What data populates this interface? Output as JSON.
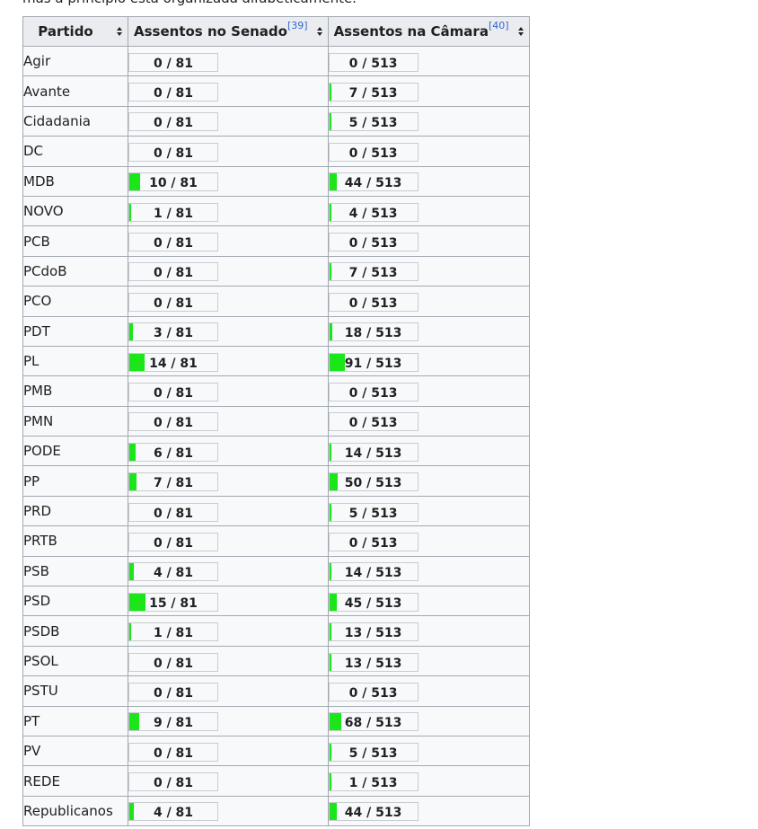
{
  "intro_text": "mas a princípio está organizada alfabeticamente.",
  "colors": {
    "bar_fill": "#1ae61a",
    "header_bg": "#eaecf0",
    "cell_bg": "#f8f9fa",
    "link": "#3366cc"
  },
  "headers": {
    "party": "Partido",
    "senate": "Assentos no Senado",
    "senate_ref": "[39]",
    "chamber": "Assentos na Câmara",
    "chamber_ref": "[40]"
  },
  "senate_total": 81,
  "chamber_total": 513,
  "rows": [
    {
      "party": "Agir",
      "senate": 0,
      "senate_label": "0 / 81",
      "chamber": 0,
      "chamber_label": "0 / 513"
    },
    {
      "party": "Avante",
      "senate": 0,
      "senate_label": "0 / 81",
      "chamber": 7,
      "chamber_label": "7 / 513"
    },
    {
      "party": "Cidadania",
      "senate": 0,
      "senate_label": "0 / 81",
      "chamber": 5,
      "chamber_label": "5 / 513"
    },
    {
      "party": "DC",
      "senate": 0,
      "senate_label": "0 / 81",
      "chamber": 0,
      "chamber_label": "0 / 513"
    },
    {
      "party": "MDB",
      "senate": 10,
      "senate_label": "10 / 81",
      "chamber": 44,
      "chamber_label": "44 / 513"
    },
    {
      "party": "NOVO",
      "senate": 1,
      "senate_label": "1 / 81",
      "chamber": 4,
      "chamber_label": "4 / 513"
    },
    {
      "party": "PCB",
      "senate": 0,
      "senate_label": "0 / 81",
      "chamber": 0,
      "chamber_label": "0 / 513"
    },
    {
      "party": "PCdoB",
      "senate": 0,
      "senate_label": "0 / 81",
      "chamber": 7,
      "chamber_label": "7 / 513"
    },
    {
      "party": "PCO",
      "senate": 0,
      "senate_label": "0 / 81",
      "chamber": 0,
      "chamber_label": "0 / 513"
    },
    {
      "party": "PDT",
      "senate": 3,
      "senate_label": "3 / 81",
      "chamber": 18,
      "chamber_label": "18 / 513"
    },
    {
      "party": "PL",
      "senate": 14,
      "senate_label": "14 / 81",
      "chamber": 91,
      "chamber_label": "91 / 513"
    },
    {
      "party": "PMB",
      "senate": 0,
      "senate_label": "0 / 81",
      "chamber": 0,
      "chamber_label": "0 / 513"
    },
    {
      "party": "PMN",
      "senate": 0,
      "senate_label": "0 / 81",
      "chamber": 0,
      "chamber_label": "0 / 513"
    },
    {
      "party": "PODE",
      "senate": 6,
      "senate_label": "6 / 81",
      "chamber": 14,
      "chamber_label": "14 / 513"
    },
    {
      "party": "PP",
      "senate": 7,
      "senate_label": "7 / 81",
      "chamber": 50,
      "chamber_label": "50 / 513"
    },
    {
      "party": "PRD",
      "senate": 0,
      "senate_label": "0 / 81",
      "chamber": 5,
      "chamber_label": "5 / 513"
    },
    {
      "party": "PRTB",
      "senate": 0,
      "senate_label": "0 / 81",
      "chamber": 0,
      "chamber_label": "0 / 513"
    },
    {
      "party": "PSB",
      "senate": 4,
      "senate_label": "4 / 81",
      "chamber": 14,
      "chamber_label": "14 / 513"
    },
    {
      "party": "PSD",
      "senate": 15,
      "senate_label": "15 / 81",
      "chamber": 45,
      "chamber_label": "45 / 513"
    },
    {
      "party": "PSDB",
      "senate": 1,
      "senate_label": "1 / 81",
      "chamber": 13,
      "chamber_label": "13 / 513"
    },
    {
      "party": "PSOL",
      "senate": 0,
      "senate_label": "0 / 81",
      "chamber": 13,
      "chamber_label": "13 / 513"
    },
    {
      "party": "PSTU",
      "senate": 0,
      "senate_label": "0 / 81",
      "chamber": 0,
      "chamber_label": "0 / 513"
    },
    {
      "party": "PT",
      "senate": 9,
      "senate_label": "9 / 81",
      "chamber": 68,
      "chamber_label": "68 / 513"
    },
    {
      "party": "PV",
      "senate": 0,
      "senate_label": "0 / 81",
      "chamber": 5,
      "chamber_label": "5 / 513"
    },
    {
      "party": "REDE",
      "senate": 0,
      "senate_label": "0 / 81",
      "chamber": 1,
      "chamber_label": "1 / 513"
    },
    {
      "party": "Republicanos",
      "senate": 4,
      "senate_label": "4 / 81",
      "chamber": 44,
      "chamber_label": "44 / 513"
    }
  ]
}
